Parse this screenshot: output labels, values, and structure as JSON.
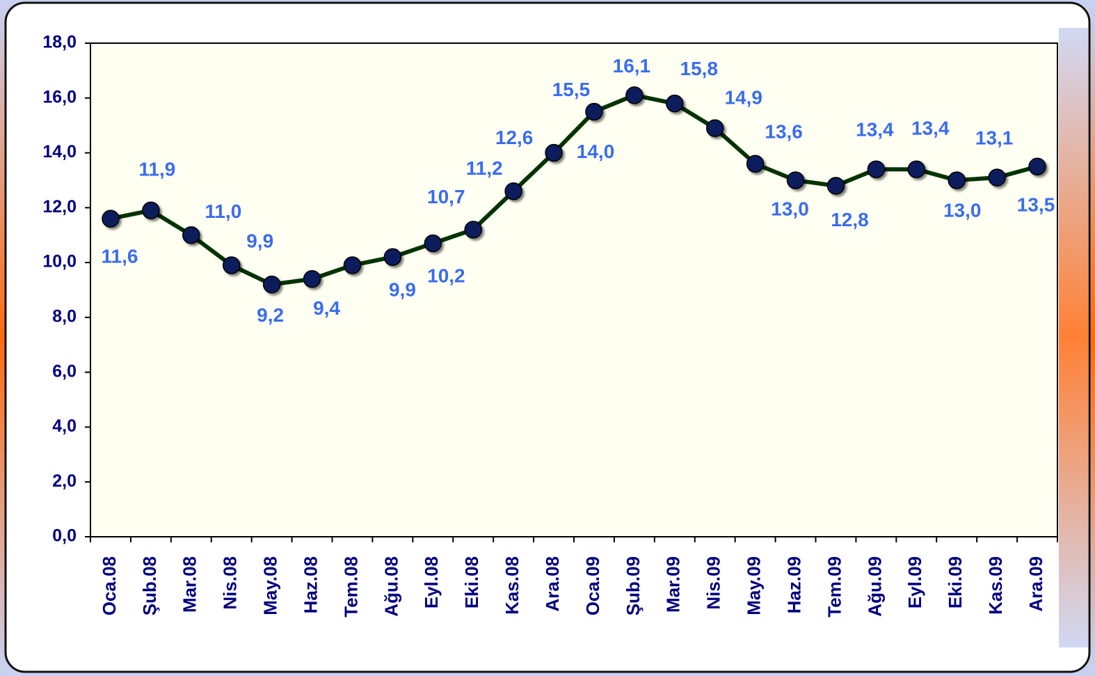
{
  "chart_data": {
    "type": "line",
    "categories": [
      "Oca.08",
      "Şub.08",
      "Mar.08",
      "Nis.08",
      "May.08",
      "Haz.08",
      "Tem.08",
      "Ağu.08",
      "Eyl.08",
      "Eki.08",
      "Kas.08",
      "Ara.08",
      "Oca.09",
      "Şub.09",
      "Mar.09",
      "Nis.09",
      "May.09",
      "Haz.09",
      "Tem.09",
      "Ağu.09",
      "Eyl.09",
      "Eki.09",
      "Kas.09",
      "Ara.09"
    ],
    "series": [
      {
        "color": "#003300",
        "marker_color": "#0a1f5c",
        "values": [
          11.6,
          11.9,
          11.0,
          9.9,
          9.2,
          9.4,
          9.9,
          10.2,
          10.7,
          11.2,
          12.6,
          14.0,
          15.5,
          16.1,
          15.8,
          14.9,
          13.6,
          13.0,
          12.8,
          13.4,
          13.4,
          13.0,
          13.1,
          13.5
        ],
        "value_labels": [
          "11,6",
          "11,9",
          "11,0",
          "9,9",
          "9,2",
          "9,4",
          "9,9",
          "10,2",
          "10,7",
          "11,2",
          "12,6",
          "14,0",
          "15,5",
          "16,1",
          "15,8",
          "14,9",
          "13,6",
          "13,0",
          "12,8",
          "13,4",
          "13,4",
          "13,0",
          "13,1",
          "13,5"
        ]
      }
    ],
    "ylim": [
      0,
      18
    ],
    "yticks": [
      {
        "value": 0,
        "label": "0,0"
      },
      {
        "value": 2,
        "label": "2,0"
      },
      {
        "value": 4,
        "label": "4,0"
      },
      {
        "value": 6,
        "label": "6,0"
      },
      {
        "value": 8,
        "label": "8,0"
      },
      {
        "value": 10,
        "label": "10,0"
      },
      {
        "value": 12,
        "label": "12,0"
      },
      {
        "value": 14,
        "label": "14,0"
      },
      {
        "value": 16,
        "label": "16,0"
      },
      {
        "value": 18,
        "label": "18,0"
      }
    ],
    "grid": false
  }
}
